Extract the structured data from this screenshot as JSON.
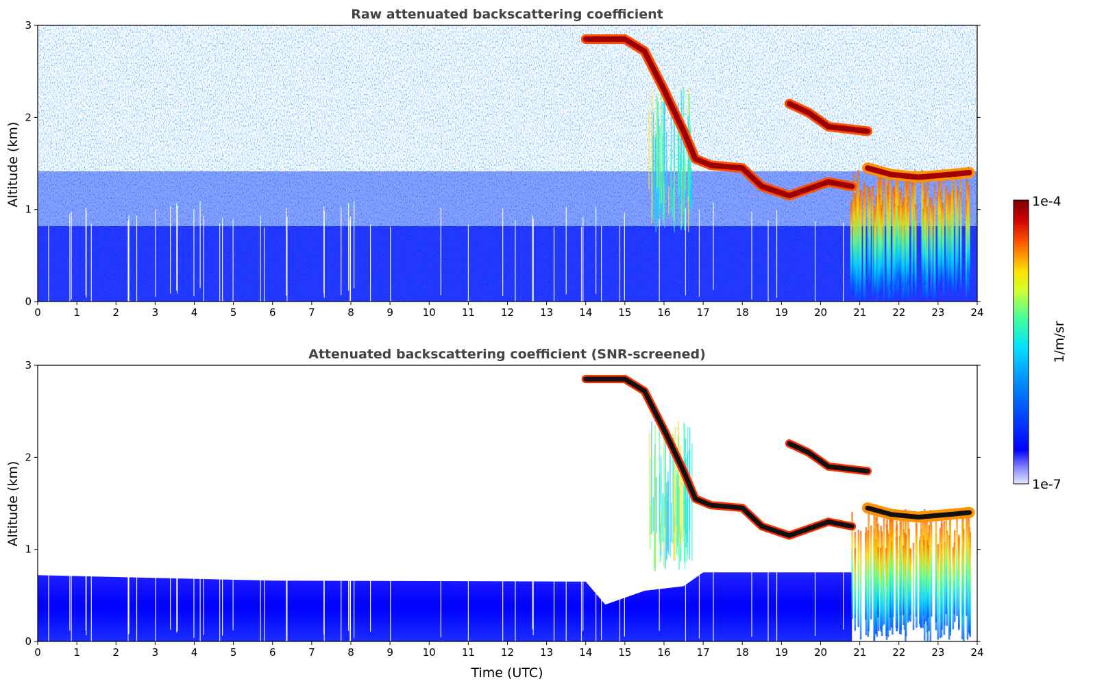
{
  "chart_data": [
    {
      "type": "heatmap",
      "title": "Raw attenuated backscattering coefficient",
      "xlabel": "",
      "ylabel": "Altitude (km)",
      "xlim": [
        0,
        24
      ],
      "ylim": [
        0,
        3
      ],
      "xticks": [
        "0",
        "1",
        "2",
        "3",
        "4",
        "5",
        "6",
        "7",
        "8",
        "9",
        "10",
        "11",
        "12",
        "13",
        "14",
        "15",
        "16",
        "17",
        "18",
        "19",
        "20",
        "21",
        "22",
        "23",
        "24"
      ],
      "yticks": [
        "0",
        "1",
        "2",
        "3"
      ],
      "cloud_path": [
        [
          14.0,
          2.85
        ],
        [
          15.0,
          2.85
        ],
        [
          15.5,
          2.72
        ],
        [
          16.0,
          2.3
        ],
        [
          16.5,
          1.85
        ],
        [
          16.8,
          1.55
        ],
        [
          17.2,
          1.48
        ],
        [
          18.0,
          1.45
        ],
        [
          18.5,
          1.25
        ],
        [
          19.2,
          1.15
        ],
        [
          20.2,
          1.3
        ],
        [
          20.8,
          1.25
        ]
      ],
      "upper_layer": [
        [
          19.2,
          2.15
        ],
        [
          19.7,
          2.05
        ],
        [
          20.2,
          1.9
        ],
        [
          21.2,
          1.85
        ]
      ],
      "low_layer": [
        [
          21.2,
          1.45
        ],
        [
          21.8,
          1.38
        ],
        [
          22.5,
          1.35
        ],
        [
          23.3,
          1.38
        ],
        [
          23.8,
          1.4
        ]
      ]
    },
    {
      "type": "heatmap",
      "title": "Attenuated backscattering coefficient (SNR-screened)",
      "xlabel": "Time (UTC)",
      "ylabel": "Altitude (km)",
      "xlim": [
        0,
        24
      ],
      "ylim": [
        0,
        3
      ],
      "xticks": [
        "0",
        "1",
        "2",
        "3",
        "4",
        "5",
        "6",
        "7",
        "8",
        "9",
        "10",
        "11",
        "12",
        "13",
        "14",
        "15",
        "16",
        "17",
        "18",
        "19",
        "20",
        "21",
        "22",
        "23",
        "24"
      ],
      "yticks": [
        "0",
        "1",
        "2",
        "3"
      ],
      "boundary_layer_top": [
        [
          0,
          0.72
        ],
        [
          6,
          0.66
        ],
        [
          14.0,
          0.65
        ],
        [
          14.5,
          0.4
        ],
        [
          15.5,
          0.55
        ],
        [
          16.5,
          0.6
        ],
        [
          17.0,
          0.75
        ],
        [
          20.8,
          0.75
        ]
      ]
    }
  ],
  "colorbar": {
    "label": "1/m/sr",
    "max_label": "1e-4",
    "min_label": "1e-7",
    "colors": [
      "#e8e8ff",
      "#0000ff",
      "#00c8ff",
      "#60ff90",
      "#ffff00",
      "#ff6000",
      "#8b0000"
    ]
  }
}
